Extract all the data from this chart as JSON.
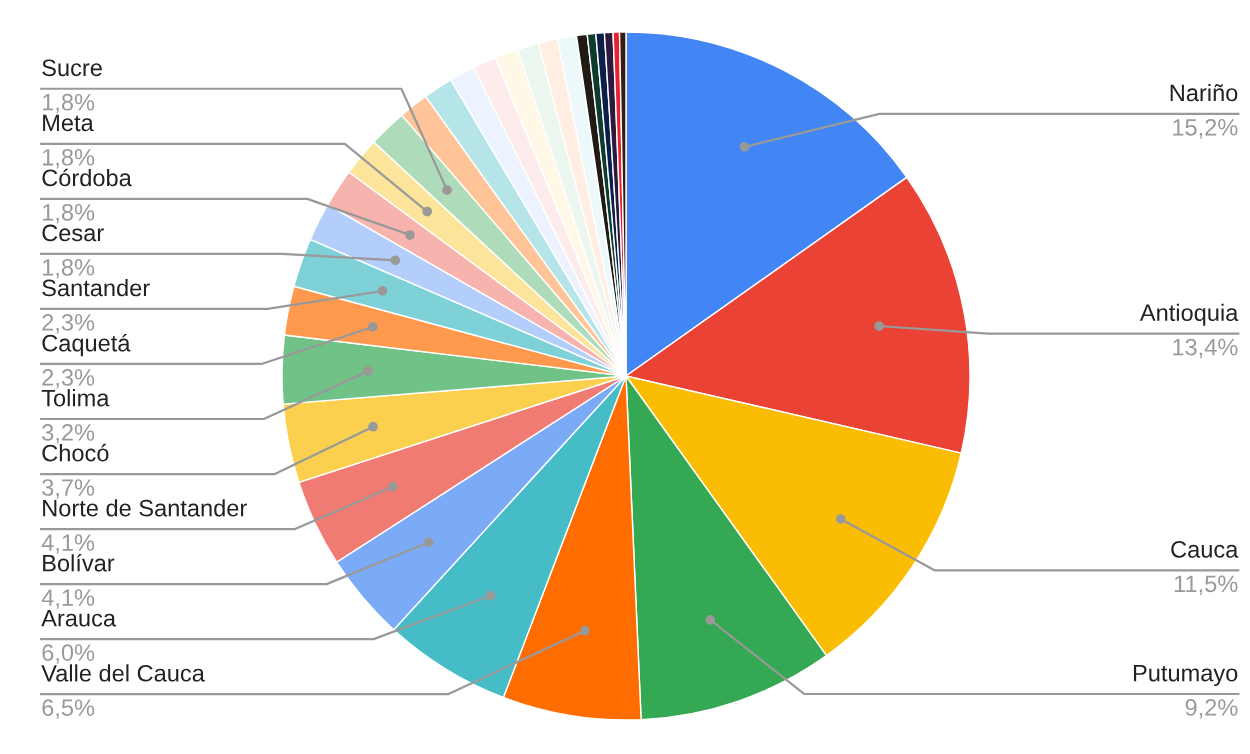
{
  "chart_data": {
    "type": "pie",
    "categories": [
      "Nariño",
      "Antioquia",
      "Cauca",
      "Putumayo",
      "Valle del Cauca",
      "Arauca",
      "Bolívar",
      "Norte de Santander",
      "Chocó",
      "Tolima",
      "Caquetá",
      "Santander",
      "Cesar",
      "Córdoba",
      "Meta",
      "Sucre",
      null,
      null,
      null,
      null,
      null,
      null,
      null,
      null,
      null,
      null,
      null,
      null,
      null,
      null
    ],
    "values": [
      15.2,
      13.4,
      11.5,
      9.2,
      6.5,
      6.0,
      4.1,
      4.1,
      3.7,
      3.2,
      2.3,
      2.3,
      1.8,
      1.8,
      1.8,
      1.8,
      1.4,
      1.4,
      1.2,
      1.1,
      1.1,
      1.0,
      0.9,
      0.9,
      0.5,
      0.4,
      0.4,
      0.4,
      0.3,
      0.3
    ],
    "value_labels": [
      "15,2%",
      "13,4%",
      "11,5%",
      "9,2%",
      "6,5%",
      "6,0%",
      "4,1%",
      "4,1%",
      "3,7%",
      "3,2%",
      "2,3%",
      "2,3%",
      "1,8%",
      "1,8%",
      "1,8%",
      "1,8%",
      null,
      null,
      null,
      null,
      null,
      null,
      null,
      null,
      null,
      null,
      null,
      null,
      null,
      null
    ],
    "colors": [
      "#4285f4",
      "#ea4335",
      "#fbbc04",
      "#34a853",
      "#ff6d01",
      "#46bdc6",
      "#7baaf7",
      "#f07b72",
      "#fcd04f",
      "#71c287",
      "#ff994d",
      "#7ed1d7",
      "#b3cefb",
      "#f7b4ae",
      "#fde49b",
      "#aedcba",
      "#ffc599",
      "#b5e5e8",
      "#ecf3fe",
      "#fdeceb",
      "#fff8e6",
      "#ebf6ee",
      "#ffeee1",
      "#ecf8f9",
      "#1f1a14",
      "#0d3b2e",
      "#0b1f4a",
      "#2b1a3d",
      "#e8222e",
      "#3a1c12"
    ],
    "legend": false
  }
}
